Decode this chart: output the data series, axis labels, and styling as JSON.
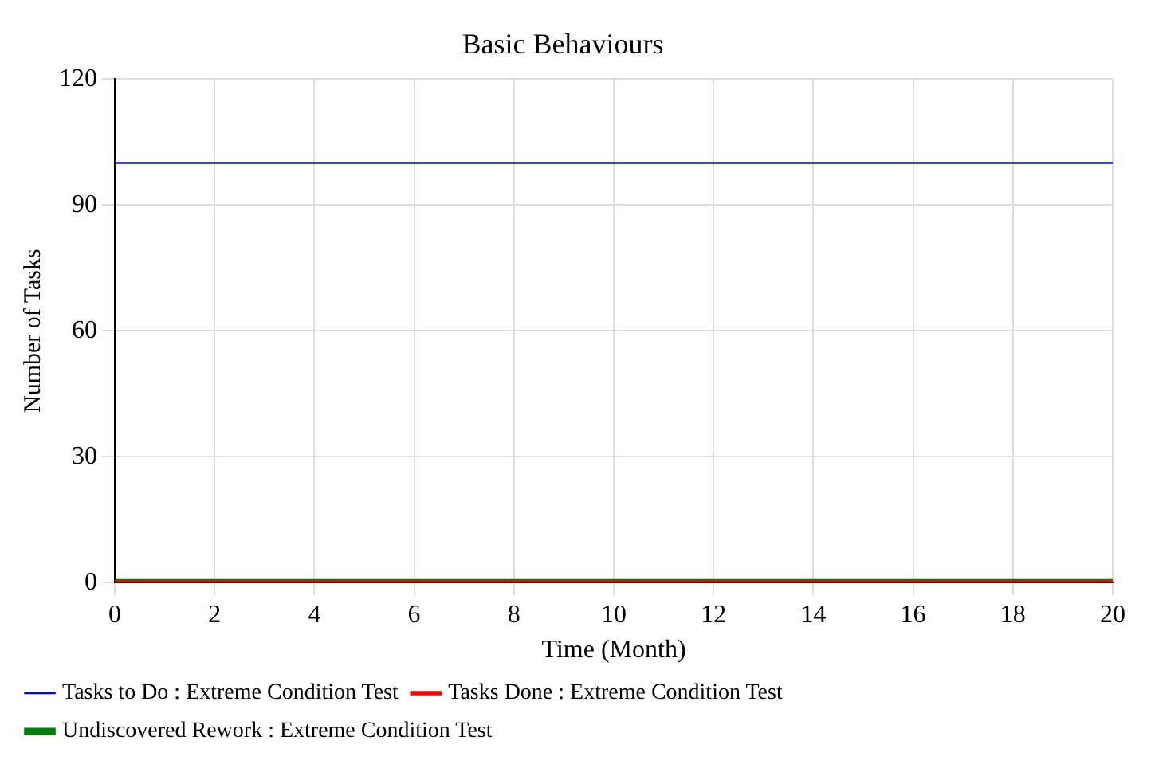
{
  "chart_data": {
    "type": "line",
    "title": "Basic Behaviours",
    "xlabel": "Time (Month)",
    "ylabel": "Number of Tasks",
    "x": [
      0,
      20
    ],
    "series": [
      {
        "name": "Tasks to Do : Extreme Condition Test",
        "color": "#0000ff",
        "values": [
          100,
          100
        ]
      },
      {
        "name": "Tasks Done : Extreme Condition Test",
        "color": "#ff0000",
        "values": [
          0,
          0
        ]
      },
      {
        "name": "Undiscovered Rework : Extreme Condition Test",
        "color": "#008000",
        "values": [
          0,
          0
        ]
      }
    ],
    "xlim": [
      0,
      20
    ],
    "xticks": [
      0,
      2,
      4,
      6,
      8,
      10,
      12,
      14,
      16,
      18,
      20
    ],
    "ylim": [
      0,
      120
    ],
    "yticks": [
      0,
      30,
      60,
      90,
      120
    ],
    "grid": true,
    "legend": "bottom"
  }
}
